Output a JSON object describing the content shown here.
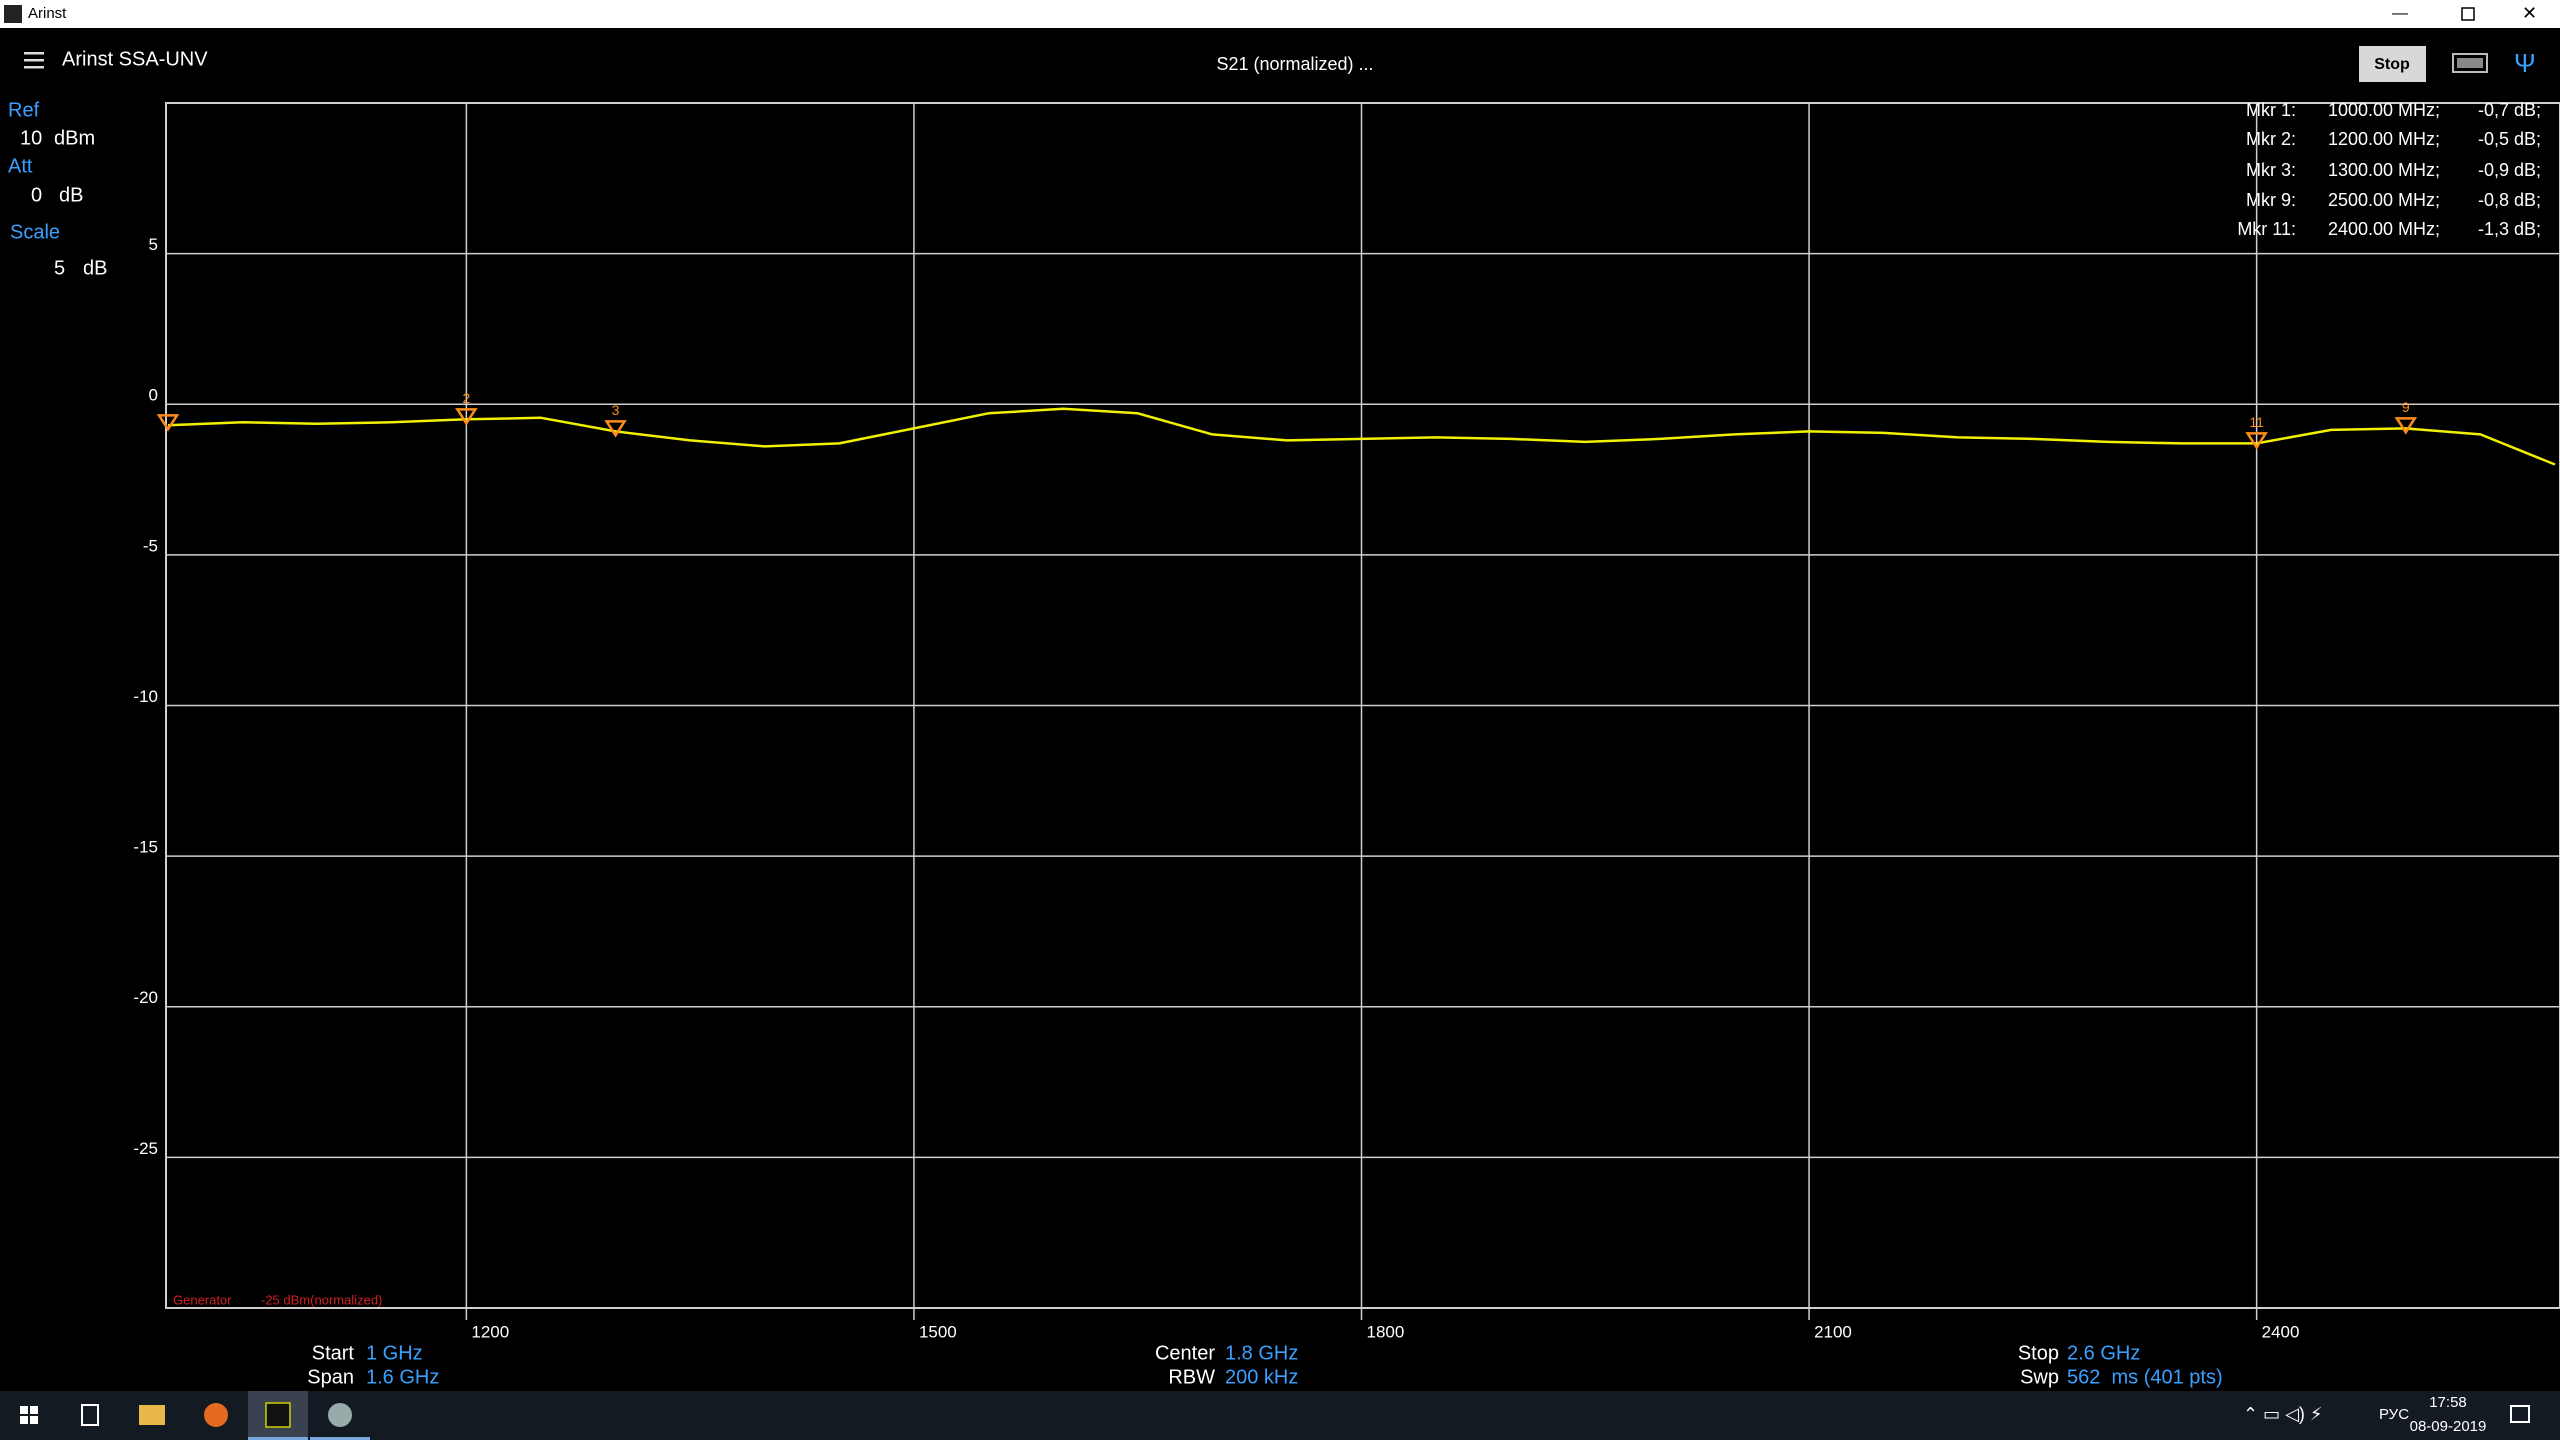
{
  "window": {
    "title": "Arinst",
    "app_name": "Arinst SSA-UNV",
    "status": "S21 (normalized) ...",
    "button": "Stop"
  },
  "settings": {
    "ref_label": "Ref",
    "ref_value": 10,
    "ref_unit": "dBm",
    "att_label": "Att",
    "att_value": 0,
    "att_unit": "dB",
    "scale_label": "Scale",
    "scale_value": 5,
    "scale_unit": "dB"
  },
  "chart_data": {
    "type": "line",
    "x": [
      1000,
      1050,
      1100,
      1150,
      1200,
      1250,
      1300,
      1350,
      1400,
      1450,
      1500,
      1550,
      1600,
      1650,
      1700,
      1750,
      1800,
      1850,
      1900,
      1950,
      2000,
      2050,
      2100,
      2150,
      2200,
      2250,
      2300,
      2350,
      2400,
      2450,
      2500,
      2550,
      2600
    ],
    "values": [
      -0.7,
      -0.6,
      -0.65,
      -0.6,
      -0.5,
      -0.45,
      -0.9,
      -1.2,
      -1.4,
      -1.3,
      -0.8,
      -0.3,
      -0.15,
      -0.3,
      -1.0,
      -1.2,
      -1.15,
      -1.1,
      -1.15,
      -1.25,
      -1.15,
      -1.0,
      -0.9,
      -0.95,
      -1.1,
      -1.15,
      -1.25,
      -1.3,
      -1.3,
      -0.85,
      -0.8,
      -1.0,
      -2.0
    ],
    "color": "#f0f000",
    "xlim": [
      1000,
      2600
    ],
    "xticks": [
      1200,
      1500,
      1800,
      2100,
      2400
    ],
    "ylim": [
      -30,
      10
    ],
    "yticks": [
      5,
      0,
      -5,
      -10,
      -15,
      -20,
      -25
    ],
    "grid": true,
    "markers": [
      {
        "name": "Mkr 1:",
        "tag": null,
        "x": 1000,
        "x_label": "1000.00 MHz;",
        "value": -0.7,
        "value_label": "-0,7 dB;"
      },
      {
        "name": "Mkr 2:",
        "tag": "2",
        "x": 1200,
        "x_label": "1200.00 MHz;",
        "value": -0.5,
        "value_label": "-0,5 dB;"
      },
      {
        "name": "Mkr 3:",
        "tag": "3",
        "x": 1300,
        "x_label": "1300.00 MHz;",
        "value": -0.9,
        "value_label": "-0,9 dB;"
      },
      {
        "name": "Mkr 9:",
        "tag": "9",
        "x": 2500,
        "x_label": "2500.00 MHz;",
        "value": -0.8,
        "value_label": "-0,8 dB;"
      },
      {
        "name": "Mkr 11:",
        "tag": "11",
        "x": 2400,
        "x_label": "2400.00 MHz;",
        "value": -1.3,
        "value_label": "-1,3 dB;"
      }
    ],
    "generator_label": "Generator",
    "generator_value": "-25 dBm(normalized)"
  },
  "footer": {
    "start_label": "Start",
    "start_value": "1 GHz",
    "span_label": "Span",
    "span_value": "1.6 GHz",
    "center_label": "Center",
    "center_value": "1.8 GHz",
    "rbw_label": "RBW",
    "rbw_value": "200 kHz",
    "stop_label": "Stop",
    "stop_value": "2.6 GHz",
    "swp_label": "Swp",
    "swp_value": "562  ms (401 pts)"
  },
  "taskbar": {
    "language": "РУС",
    "time": "17:58",
    "date": "08-09-2019"
  }
}
